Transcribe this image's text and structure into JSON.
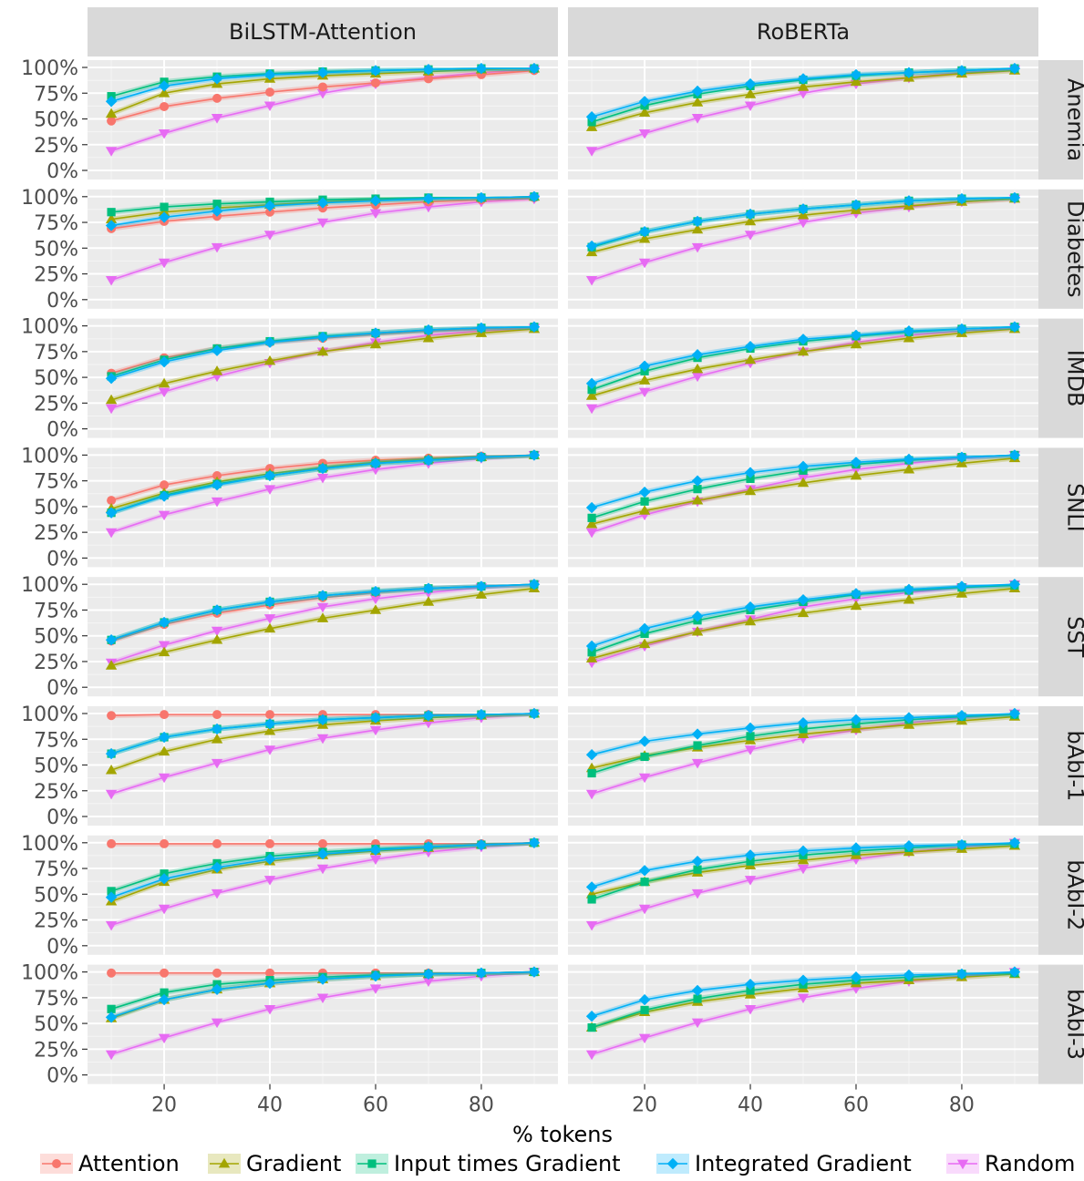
{
  "chart_data": {
    "type": "line",
    "xlabel": "% tokens",
    "ylabel": "",
    "x": [
      10,
      20,
      30,
      40,
      50,
      60,
      70,
      80,
      90
    ],
    "xlim": [
      5.5,
      94.5
    ],
    "ylim": [
      0,
      1
    ],
    "x_ticks": [
      20,
      40,
      60,
      80
    ],
    "y_ticks": [
      "0%",
      "25%",
      "50%",
      "75%",
      "100%"
    ],
    "y_tick_values": [
      0,
      0.25,
      0.5,
      0.75,
      1.0
    ],
    "grid": true,
    "legend_position": "bottom",
    "columns": [
      "BiLSTM-Attention",
      "RoBERTa"
    ],
    "rows": [
      "Anemia",
      "Diabetes",
      "IMDB",
      "SNLI",
      "SST",
      "bAbI-1",
      "bAbI-2",
      "bAbI-3"
    ],
    "series_names": [
      "Attention",
      "Gradient",
      "Input times Gradient",
      "Integrated Gradient",
      "Random"
    ],
    "colors": [
      "#F8766D",
      "#A3A500",
      "#00BF7D",
      "#00B0F6",
      "#E76BF3"
    ],
    "marker_shapes": [
      "circle",
      "triangle-up",
      "square",
      "diamond",
      "triangle-down"
    ],
    "panels": [
      {
        "row": "Anemia",
        "column": "BiLSTM-Attention",
        "series": {
          "Attention": [
            0.48,
            0.62,
            0.7,
            0.76,
            0.81,
            0.85,
            0.89,
            0.93,
            0.97
          ],
          "Gradient": [
            0.55,
            0.75,
            0.84,
            0.89,
            0.92,
            0.94,
            0.96,
            0.98,
            0.99
          ],
          "Input times Gradient": [
            0.72,
            0.86,
            0.91,
            0.94,
            0.96,
            0.97,
            0.98,
            0.99,
            0.99
          ],
          "Integrated Gradient": [
            0.67,
            0.82,
            0.89,
            0.93,
            0.95,
            0.97,
            0.98,
            0.99,
            0.99
          ],
          "Random": [
            0.19,
            0.36,
            0.51,
            0.63,
            0.75,
            0.84,
            0.9,
            0.95,
            0.98
          ]
        }
      },
      {
        "row": "Anemia",
        "column": "RoBERTa",
        "series": {
          "Attention": null,
          "Gradient": [
            0.42,
            0.56,
            0.66,
            0.74,
            0.81,
            0.86,
            0.9,
            0.94,
            0.97
          ],
          "Input times Gradient": [
            0.47,
            0.63,
            0.74,
            0.82,
            0.88,
            0.92,
            0.95,
            0.97,
            0.99
          ],
          "Integrated Gradient": [
            0.52,
            0.67,
            0.77,
            0.84,
            0.89,
            0.93,
            0.95,
            0.97,
            0.99
          ],
          "Random": [
            0.19,
            0.36,
            0.51,
            0.63,
            0.75,
            0.84,
            0.9,
            0.95,
            0.98
          ]
        }
      },
      {
        "row": "Diabetes",
        "column": "BiLSTM-Attention",
        "series": {
          "Attention": [
            0.69,
            0.76,
            0.81,
            0.85,
            0.89,
            0.92,
            0.95,
            0.97,
            0.99
          ],
          "Gradient": [
            0.78,
            0.85,
            0.89,
            0.92,
            0.95,
            0.97,
            0.98,
            0.99,
            1.0
          ],
          "Input times Gradient": [
            0.85,
            0.9,
            0.93,
            0.95,
            0.97,
            0.98,
            0.99,
            0.99,
            1.0
          ],
          "Integrated Gradient": [
            0.72,
            0.8,
            0.86,
            0.91,
            0.94,
            0.96,
            0.98,
            0.99,
            1.0
          ],
          "Random": [
            0.19,
            0.36,
            0.51,
            0.63,
            0.75,
            0.84,
            0.9,
            0.95,
            0.98
          ]
        }
      },
      {
        "row": "Diabetes",
        "column": "RoBERTa",
        "series": {
          "Attention": null,
          "Gradient": [
            0.46,
            0.59,
            0.68,
            0.76,
            0.82,
            0.87,
            0.91,
            0.95,
            0.98
          ],
          "Input times Gradient": [
            0.51,
            0.66,
            0.76,
            0.83,
            0.88,
            0.92,
            0.96,
            0.98,
            0.99
          ],
          "Integrated Gradient": [
            0.52,
            0.66,
            0.76,
            0.83,
            0.88,
            0.92,
            0.96,
            0.98,
            0.99
          ],
          "Random": [
            0.19,
            0.36,
            0.51,
            0.63,
            0.75,
            0.84,
            0.9,
            0.95,
            0.98
          ]
        }
      },
      {
        "row": "IMDB",
        "column": "BiLSTM-Attention",
        "series": {
          "Attention": [
            0.54,
            0.69,
            0.78,
            0.84,
            0.88,
            0.92,
            0.95,
            0.97,
            0.99
          ],
          "Gradient": [
            0.28,
            0.44,
            0.56,
            0.66,
            0.75,
            0.82,
            0.88,
            0.93,
            0.97
          ],
          "Input times Gradient": [
            0.51,
            0.67,
            0.78,
            0.85,
            0.9,
            0.93,
            0.96,
            0.98,
            0.99
          ],
          "Integrated Gradient": [
            0.49,
            0.65,
            0.76,
            0.84,
            0.89,
            0.93,
            0.96,
            0.98,
            0.99
          ],
          "Random": [
            0.2,
            0.36,
            0.51,
            0.64,
            0.75,
            0.84,
            0.91,
            0.95,
            0.98
          ]
        }
      },
      {
        "row": "IMDB",
        "column": "RoBERTa",
        "series": {
          "Attention": null,
          "Gradient": [
            0.32,
            0.47,
            0.58,
            0.67,
            0.75,
            0.82,
            0.88,
            0.93,
            0.97
          ],
          "Input times Gradient": [
            0.38,
            0.56,
            0.69,
            0.78,
            0.85,
            0.9,
            0.94,
            0.97,
            0.99
          ],
          "Integrated Gradient": [
            0.44,
            0.61,
            0.72,
            0.8,
            0.87,
            0.91,
            0.95,
            0.97,
            0.99
          ],
          "Random": [
            0.2,
            0.36,
            0.51,
            0.64,
            0.75,
            0.84,
            0.91,
            0.95,
            0.98
          ]
        }
      },
      {
        "row": "SNLI",
        "column": "BiLSTM-Attention",
        "series": {
          "Attention": [
            0.56,
            0.71,
            0.8,
            0.87,
            0.92,
            0.95,
            0.97,
            0.99,
            1.0
          ],
          "Gradient": [
            0.48,
            0.63,
            0.74,
            0.82,
            0.88,
            0.93,
            0.96,
            0.98,
            1.0
          ],
          "Input times Gradient": [
            0.44,
            0.61,
            0.72,
            0.8,
            0.87,
            0.92,
            0.95,
            0.98,
            1.0
          ],
          "Integrated Gradient": [
            0.44,
            0.6,
            0.71,
            0.8,
            0.87,
            0.92,
            0.95,
            0.98,
            1.0
          ],
          "Random": [
            0.25,
            0.42,
            0.55,
            0.67,
            0.78,
            0.86,
            0.92,
            0.97,
            1.0
          ]
        }
      },
      {
        "row": "SNLI",
        "column": "RoBERTa",
        "series": {
          "Attention": null,
          "Gradient": [
            0.33,
            0.46,
            0.56,
            0.65,
            0.73,
            0.8,
            0.86,
            0.92,
            0.97
          ],
          "Input times Gradient": [
            0.39,
            0.55,
            0.67,
            0.77,
            0.85,
            0.91,
            0.95,
            0.98,
            1.0
          ],
          "Integrated Gradient": [
            0.49,
            0.64,
            0.75,
            0.83,
            0.89,
            0.93,
            0.96,
            0.98,
            1.0
          ],
          "Random": [
            0.25,
            0.42,
            0.55,
            0.67,
            0.78,
            0.86,
            0.92,
            0.97,
            1.0
          ]
        }
      },
      {
        "row": "SST",
        "column": "BiLSTM-Attention",
        "series": {
          "Attention": [
            0.45,
            0.61,
            0.72,
            0.8,
            0.87,
            0.92,
            0.96,
            0.98,
            1.0
          ],
          "Gradient": [
            0.21,
            0.34,
            0.46,
            0.57,
            0.67,
            0.75,
            0.83,
            0.9,
            0.96
          ],
          "Input times Gradient": [
            0.46,
            0.63,
            0.75,
            0.83,
            0.89,
            0.93,
            0.96,
            0.98,
            1.0
          ],
          "Integrated Gradient": [
            0.46,
            0.63,
            0.75,
            0.83,
            0.89,
            0.93,
            0.96,
            0.98,
            1.0
          ],
          "Random": [
            0.24,
            0.41,
            0.55,
            0.67,
            0.78,
            0.86,
            0.92,
            0.97,
            1.0
          ]
        }
      },
      {
        "row": "SST",
        "column": "RoBERTa",
        "series": {
          "Attention": null,
          "Gradient": [
            0.28,
            0.42,
            0.54,
            0.64,
            0.72,
            0.79,
            0.85,
            0.91,
            0.96
          ],
          "Input times Gradient": [
            0.34,
            0.52,
            0.65,
            0.75,
            0.83,
            0.9,
            0.94,
            0.97,
            0.99
          ],
          "Integrated Gradient": [
            0.4,
            0.57,
            0.69,
            0.78,
            0.85,
            0.91,
            0.95,
            0.98,
            1.0
          ],
          "Random": [
            0.24,
            0.4,
            0.54,
            0.66,
            0.78,
            0.86,
            0.92,
            0.97,
            1.0
          ]
        }
      },
      {
        "row": "bAbI-1",
        "column": "BiLSTM-Attention",
        "series": {
          "Attention": [
            0.98,
            0.99,
            0.99,
            0.99,
            0.99,
            0.99,
            0.99,
            0.99,
            1.0
          ],
          "Gradient": [
            0.45,
            0.63,
            0.75,
            0.83,
            0.89,
            0.93,
            0.96,
            0.98,
            1.0
          ],
          "Input times Gradient": [
            0.61,
            0.77,
            0.85,
            0.9,
            0.94,
            0.96,
            0.98,
            0.99,
            1.0
          ],
          "Integrated Gradient": [
            0.61,
            0.77,
            0.85,
            0.9,
            0.94,
            0.96,
            0.98,
            0.99,
            1.0
          ],
          "Random": [
            0.22,
            0.38,
            0.52,
            0.65,
            0.76,
            0.84,
            0.91,
            0.96,
            1.0
          ]
        }
      },
      {
        "row": "bAbI-1",
        "column": "RoBERTa",
        "series": {
          "Attention": null,
          "Gradient": [
            0.47,
            0.59,
            0.67,
            0.74,
            0.8,
            0.85,
            0.89,
            0.93,
            0.97
          ],
          "Input times Gradient": [
            0.42,
            0.58,
            0.69,
            0.78,
            0.85,
            0.9,
            0.94,
            0.97,
            0.99
          ],
          "Integrated Gradient": [
            0.6,
            0.73,
            0.8,
            0.86,
            0.91,
            0.94,
            0.96,
            0.98,
            1.0
          ],
          "Random": [
            0.22,
            0.38,
            0.52,
            0.65,
            0.76,
            0.84,
            0.91,
            0.96,
            1.0
          ]
        }
      },
      {
        "row": "bAbI-2",
        "column": "BiLSTM-Attention",
        "series": {
          "Attention": [
            0.99,
            0.99,
            0.99,
            0.99,
            0.99,
            0.99,
            0.99,
            0.99,
            1.0
          ],
          "Gradient": [
            0.43,
            0.62,
            0.74,
            0.82,
            0.88,
            0.92,
            0.95,
            0.98,
            1.0
          ],
          "Input times Gradient": [
            0.53,
            0.7,
            0.8,
            0.87,
            0.91,
            0.94,
            0.96,
            0.98,
            1.0
          ],
          "Integrated Gradient": [
            0.47,
            0.65,
            0.76,
            0.84,
            0.89,
            0.93,
            0.96,
            0.98,
            1.0
          ],
          "Random": [
            0.2,
            0.36,
            0.51,
            0.64,
            0.75,
            0.84,
            0.91,
            0.96,
            1.0
          ]
        }
      },
      {
        "row": "bAbI-2",
        "column": "RoBERTa",
        "series": {
          "Attention": null,
          "Gradient": [
            0.5,
            0.62,
            0.71,
            0.78,
            0.83,
            0.88,
            0.91,
            0.94,
            0.97
          ],
          "Input times Gradient": [
            0.45,
            0.62,
            0.74,
            0.82,
            0.88,
            0.92,
            0.95,
            0.98,
            0.99
          ],
          "Integrated Gradient": [
            0.57,
            0.73,
            0.82,
            0.88,
            0.92,
            0.95,
            0.97,
            0.98,
            1.0
          ],
          "Random": [
            0.2,
            0.36,
            0.51,
            0.64,
            0.75,
            0.84,
            0.91,
            0.96,
            1.0
          ]
        }
      },
      {
        "row": "bAbI-3",
        "column": "BiLSTM-Attention",
        "series": {
          "Attention": [
            0.99,
            0.99,
            0.99,
            0.99,
            0.99,
            0.99,
            0.99,
            0.99,
            1.0
          ],
          "Gradient": [
            0.55,
            0.73,
            0.83,
            0.89,
            0.93,
            0.96,
            0.98,
            0.99,
            1.0
          ],
          "Input times Gradient": [
            0.64,
            0.8,
            0.88,
            0.92,
            0.95,
            0.97,
            0.98,
            0.99,
            1.0
          ],
          "Integrated Gradient": [
            0.56,
            0.73,
            0.83,
            0.89,
            0.93,
            0.96,
            0.98,
            0.99,
            1.0
          ],
          "Random": [
            0.2,
            0.36,
            0.51,
            0.64,
            0.75,
            0.84,
            0.91,
            0.96,
            1.0
          ]
        }
      },
      {
        "row": "bAbI-3",
        "column": "RoBERTa",
        "series": {
          "Attention": null,
          "Gradient": [
            0.46,
            0.61,
            0.71,
            0.78,
            0.84,
            0.89,
            0.92,
            0.95,
            0.98
          ],
          "Input times Gradient": [
            0.46,
            0.63,
            0.74,
            0.82,
            0.88,
            0.92,
            0.95,
            0.98,
            0.99
          ],
          "Integrated Gradient": [
            0.57,
            0.73,
            0.82,
            0.88,
            0.92,
            0.95,
            0.97,
            0.98,
            1.0
          ],
          "Random": [
            0.2,
            0.36,
            0.51,
            0.64,
            0.75,
            0.84,
            0.91,
            0.96,
            1.0
          ]
        }
      }
    ]
  }
}
